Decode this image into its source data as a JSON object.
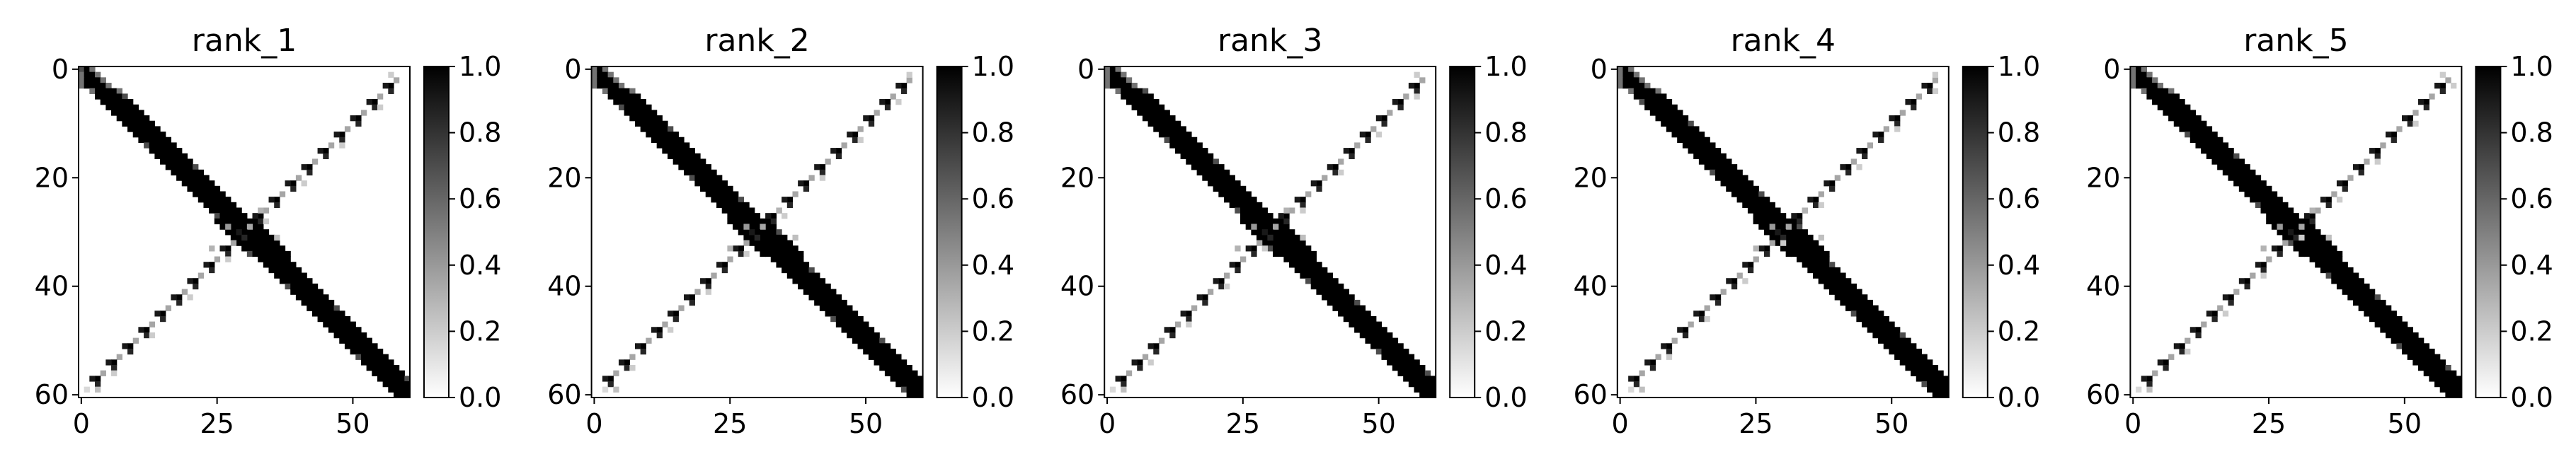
{
  "chart_data": [
    {
      "type": "heatmap",
      "title": "rank_1",
      "xlim": [
        0,
        61
      ],
      "ylim": [
        0,
        61
      ],
      "x_ticks": [
        "0",
        "25",
        "50"
      ],
      "y_ticks": [
        "0",
        "20",
        "40",
        "60"
      ],
      "colorbar": {
        "range": [
          0,
          1
        ],
        "ticks": [
          "0.0",
          "0.2",
          "0.4",
          "0.6",
          "0.8",
          "1.0"
        ],
        "colormap": "Greys"
      }
    },
    {
      "type": "heatmap",
      "title": "rank_2",
      "xlim": [
        0,
        61
      ],
      "ylim": [
        0,
        61
      ],
      "x_ticks": [
        "0",
        "25",
        "50"
      ],
      "y_ticks": [
        "0",
        "20",
        "40",
        "60"
      ],
      "colorbar": {
        "range": [
          0,
          1
        ],
        "ticks": [
          "0.0",
          "0.2",
          "0.4",
          "0.6",
          "0.8",
          "1.0"
        ],
        "colormap": "Greys"
      }
    },
    {
      "type": "heatmap",
      "title": "rank_3",
      "xlim": [
        0,
        61
      ],
      "ylim": [
        0,
        61
      ],
      "x_ticks": [
        "0",
        "25",
        "50"
      ],
      "y_ticks": [
        "0",
        "20",
        "40",
        "60"
      ],
      "colorbar": {
        "range": [
          0,
          1
        ],
        "ticks": [
          "0.0",
          "0.2",
          "0.4",
          "0.6",
          "0.8",
          "1.0"
        ],
        "colormap": "Greys"
      }
    },
    {
      "type": "heatmap",
      "title": "rank_4",
      "xlim": [
        0,
        61
      ],
      "ylim": [
        0,
        61
      ],
      "x_ticks": [
        "0",
        "25",
        "50"
      ],
      "y_ticks": [
        "0",
        "20",
        "40",
        "60"
      ],
      "colorbar": {
        "range": [
          0,
          1
        ],
        "ticks": [
          "0.0",
          "0.2",
          "0.4",
          "0.6",
          "0.8",
          "1.0"
        ],
        "colormap": "Greys"
      }
    },
    {
      "type": "heatmap",
      "title": "rank_5",
      "xlim": [
        0,
        61
      ],
      "ylim": [
        0,
        61
      ],
      "x_ticks": [
        "0",
        "25",
        "50"
      ],
      "y_ticks": [
        "0",
        "20",
        "40",
        "60"
      ],
      "colorbar": {
        "range": [
          0,
          1
        ],
        "ticks": [
          "0.0",
          "0.2",
          "0.4",
          "0.6",
          "0.8",
          "1.0"
        ],
        "colormap": "Greys"
      }
    }
  ]
}
